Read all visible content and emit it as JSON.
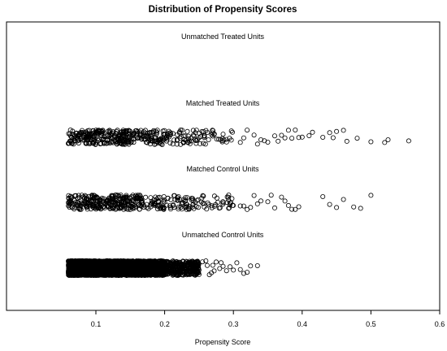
{
  "chart_data": {
    "type": "scatter",
    "title": "Distribution of Propensity Scores",
    "xlabel": "Propensity Score",
    "ylabel": "",
    "xlim": [
      -0.03,
      0.6
    ],
    "x_ticks": [
      0.1,
      0.2,
      0.3,
      0.4,
      0.5,
      0.6
    ],
    "x_tick_labels": [
      "0.1",
      "0.2",
      "0.3",
      "0.4",
      "0.5",
      "0.6"
    ],
    "marker": "open-circle",
    "jitter": "vertical",
    "series": [
      {
        "name": "Unmatched Treated Units",
        "count": 0,
        "x_range": [],
        "density": [],
        "extra_x": []
      },
      {
        "name": "Matched Treated Units",
        "count": 420,
        "x_range": [
          0.06,
          0.3
        ],
        "density": [
          [
            0.06,
            0.1,
            1.0
          ],
          [
            0.1,
            0.15,
            1.4
          ],
          [
            0.15,
            0.2,
            0.9
          ],
          [
            0.2,
            0.25,
            0.55
          ],
          [
            0.25,
            0.3,
            0.35
          ]
        ],
        "extra_x": [
          0.31,
          0.315,
          0.32,
          0.33,
          0.335,
          0.34,
          0.345,
          0.35,
          0.36,
          0.365,
          0.37,
          0.375,
          0.38,
          0.385,
          0.39,
          0.395,
          0.4,
          0.41,
          0.415,
          0.43,
          0.44,
          0.445,
          0.45,
          0.46,
          0.465,
          0.48,
          0.5,
          0.52,
          0.525,
          0.555
        ]
      },
      {
        "name": "Matched Control Units",
        "count": 420,
        "x_range": [
          0.06,
          0.3
        ],
        "density": [
          [
            0.06,
            0.1,
            1.0
          ],
          [
            0.1,
            0.15,
            1.4
          ],
          [
            0.15,
            0.2,
            0.9
          ],
          [
            0.2,
            0.25,
            0.55
          ],
          [
            0.25,
            0.3,
            0.35
          ]
        ],
        "extra_x": [
          0.31,
          0.315,
          0.32,
          0.325,
          0.33,
          0.335,
          0.34,
          0.35,
          0.355,
          0.36,
          0.37,
          0.375,
          0.38,
          0.385,
          0.39,
          0.395,
          0.43,
          0.44,
          0.45,
          0.46,
          0.475,
          0.485,
          0.5
        ]
      },
      {
        "name": "Unmatched Control Units",
        "count": 4500,
        "x_range": [
          0.06,
          0.25
        ],
        "density": [
          [
            0.06,
            0.1,
            1.0
          ],
          [
            0.1,
            0.15,
            0.95
          ],
          [
            0.15,
            0.2,
            0.6
          ],
          [
            0.2,
            0.25,
            0.2
          ]
        ],
        "extra_x": [
          0.25,
          0.255,
          0.26,
          0.262,
          0.265,
          0.268,
          0.27,
          0.272,
          0.275,
          0.28,
          0.282,
          0.285,
          0.29,
          0.295,
          0.3,
          0.305,
          0.31,
          0.315,
          0.32,
          0.325,
          0.335
        ]
      }
    ]
  }
}
